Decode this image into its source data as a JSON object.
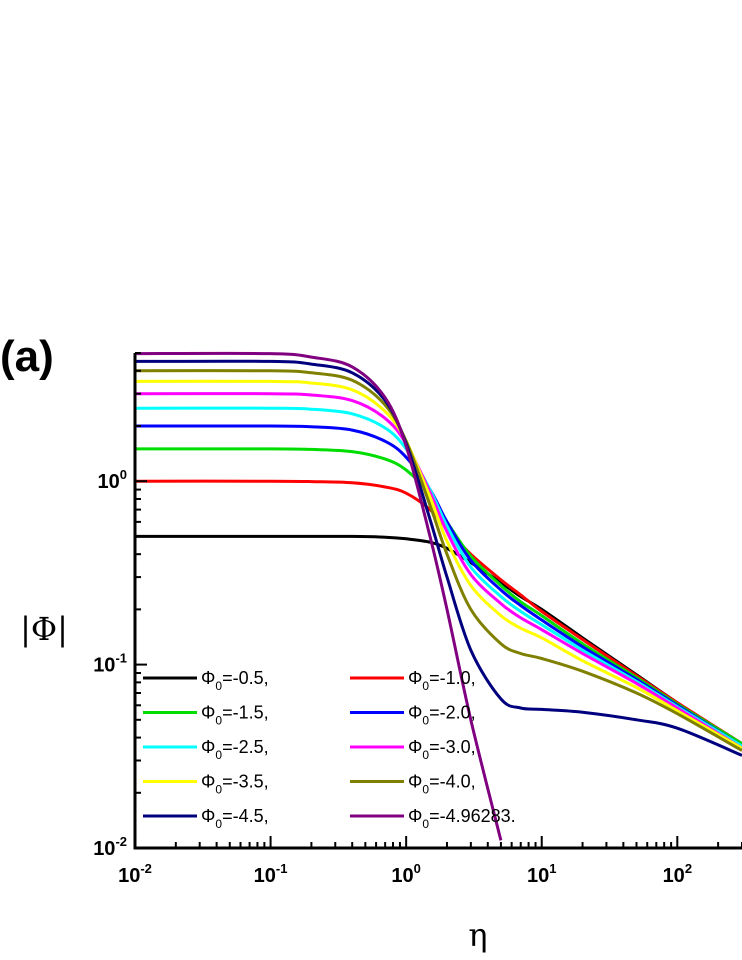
{
  "panel_label": "(a)",
  "chart_data": {
    "type": "line",
    "title": "",
    "xlabel": "η",
    "ylabel": "|Φ|",
    "xscale": "log",
    "yscale": "log",
    "xlim": [
      0.01,
      300
    ],
    "ylim": [
      0.01,
      5
    ],
    "x_ticks": [
      {
        "value": 0.01,
        "base": "10",
        "exp": "-2"
      },
      {
        "value": 0.1,
        "base": "10",
        "exp": "-1"
      },
      {
        "value": 1,
        "base": "10",
        "exp": "0"
      },
      {
        "value": 10,
        "base": "10",
        "exp": "1"
      },
      {
        "value": 100,
        "base": "10",
        "exp": "2"
      }
    ],
    "y_ticks": [
      {
        "value": 0.01,
        "base": "10",
        "exp": "-2"
      },
      {
        "value": 0.1,
        "base": "10",
        "exp": "-1"
      },
      {
        "value": 1,
        "base": "10",
        "exp": "0"
      }
    ],
    "legend_placement": "bottom-left",
    "grid": false,
    "x": [
      0.01,
      0.1,
      0.2,
      0.4,
      0.7,
      1.0,
      1.5,
      2,
      3,
      5,
      7,
      10,
      20,
      50,
      100,
      300
    ],
    "series": [
      {
        "name": "Φ0=-0.5,",
        "label_main": "Φ",
        "label_sub": "0",
        "label_rest": "=-0.5,",
        "color": "#000000",
        "values": [
          0.5,
          0.5,
          0.5,
          0.5,
          0.495,
          0.485,
          0.465,
          0.43,
          0.36,
          0.28,
          0.235,
          0.2,
          0.14,
          0.088,
          0.062,
          0.037
        ]
      },
      {
        "name": "Φ0=-1.0,",
        "label_main": "Φ",
        "label_sub": "0",
        "label_rest": "=-1.0,",
        "color": "#ff0000",
        "values": [
          1.0,
          1.0,
          0.995,
          0.98,
          0.93,
          0.86,
          0.7,
          0.55,
          0.4,
          0.29,
          0.24,
          0.195,
          0.137,
          0.087,
          0.062,
          0.037
        ]
      },
      {
        "name": "Φ0=-1.5,",
        "label_main": "Φ",
        "label_sub": "0",
        "label_rest": "=-1.5,",
        "color": "#00dd00",
        "values": [
          1.5,
          1.5,
          1.49,
          1.45,
          1.32,
          1.15,
          0.85,
          0.6,
          0.39,
          0.27,
          0.22,
          0.185,
          0.13,
          0.085,
          0.061,
          0.037
        ]
      },
      {
        "name": "Φ0=-2.0,",
        "label_main": "Φ",
        "label_sub": "0",
        "label_rest": "=-2.0,",
        "color": "#0000ff",
        "values": [
          2.0,
          2.0,
          1.98,
          1.9,
          1.65,
          1.35,
          0.9,
          0.6,
          0.37,
          0.255,
          0.21,
          0.175,
          0.125,
          0.083,
          0.06,
          0.036
        ]
      },
      {
        "name": "Φ0=-2.5,",
        "label_main": "Φ",
        "label_sub": "0",
        "label_rest": "=-2.5,",
        "color": "#00ffff",
        "values": [
          2.5,
          2.5,
          2.47,
          2.33,
          1.95,
          1.5,
          0.9,
          0.57,
          0.34,
          0.235,
          0.195,
          0.165,
          0.12,
          0.081,
          0.059,
          0.036
        ]
      },
      {
        "name": "Φ0=-3.0,",
        "label_main": "Φ",
        "label_sub": "0",
        "label_rest": "=-3.0,",
        "color": "#ff00ff",
        "values": [
          3.0,
          3.0,
          2.95,
          2.75,
          2.2,
          1.6,
          0.87,
          0.53,
          0.31,
          0.215,
          0.18,
          0.155,
          0.115,
          0.079,
          0.058,
          0.035
        ]
      },
      {
        "name": "Φ0=-3.5,",
        "label_main": "Φ",
        "label_sub": "0",
        "label_rest": "=-3.5,",
        "color": "#ffff00",
        "values": [
          3.5,
          3.5,
          3.43,
          3.15,
          2.4,
          1.65,
          0.82,
          0.47,
          0.27,
          0.185,
          0.158,
          0.14,
          0.105,
          0.075,
          0.056,
          0.035
        ]
      },
      {
        "name": "Φ0=-4.0,",
        "label_main": "Φ",
        "label_sub": "0",
        "label_rest": "=-4.0,",
        "color": "#808000",
        "values": [
          4.0,
          4.0,
          3.9,
          3.55,
          2.6,
          1.65,
          0.74,
          0.4,
          0.2,
          0.13,
          0.115,
          0.108,
          0.092,
          0.07,
          0.054,
          0.034
        ]
      },
      {
        "name": "Φ0=-4.5,",
        "label_main": "Φ",
        "label_sub": "0",
        "label_rest": "=-4.5,",
        "color": "#00007f",
        "values": [
          4.5,
          4.5,
          4.35,
          3.9,
          2.75,
          1.6,
          0.62,
          0.3,
          0.12,
          0.065,
          0.058,
          0.057,
          0.055,
          0.05,
          0.045,
          0.032
        ]
      },
      {
        "name": "Φ0=-4.96283.",
        "label_main": "Φ",
        "label_sub": "0",
        "label_rest": "=-4.96283.",
        "color": "#800080",
        "values": [
          4.96,
          4.96,
          4.75,
          4.2,
          2.85,
          1.55,
          0.5,
          0.2,
          0.05,
          0.011,
          null,
          null,
          null,
          null,
          null,
          null
        ]
      }
    ]
  }
}
